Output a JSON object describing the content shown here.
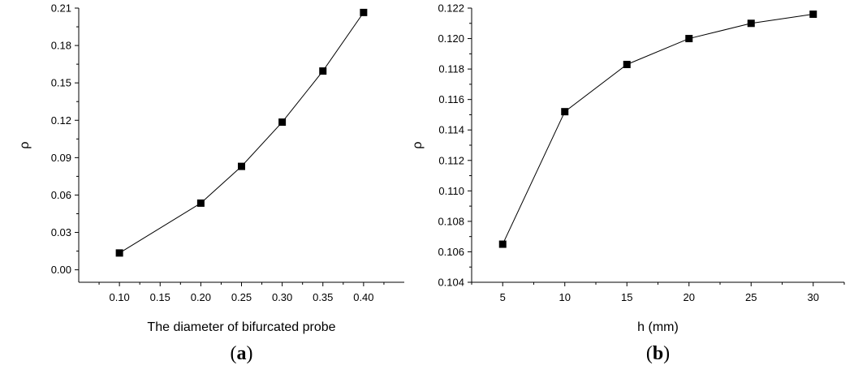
{
  "chart_data": [
    {
      "type": "line",
      "panel_label": "a",
      "xlabel": "The diameter of bifurcated probe",
      "ylabel": "ρ",
      "x": [
        0.1,
        0.2,
        0.25,
        0.3,
        0.35,
        0.4
      ],
      "y": [
        0.0135,
        0.0535,
        0.083,
        0.1185,
        0.1595,
        0.2065
      ],
      "xticks": [
        "0.10",
        "0.15",
        "0.20",
        "0.25",
        "0.30",
        "0.35",
        "0.40"
      ],
      "yticks": [
        "0.00",
        "0.03",
        "0.06",
        "0.09",
        "0.12",
        "0.15",
        "0.18",
        "0.21"
      ],
      "xlim": [
        0.05,
        0.45
      ],
      "ylim": [
        -0.01,
        0.21
      ],
      "marker": "square",
      "grid": false
    },
    {
      "type": "line",
      "panel_label": "b",
      "xlabel": "h (mm)",
      "ylabel": "ρ",
      "x": [
        5,
        10,
        15,
        20,
        25,
        30
      ],
      "y": [
        0.1065,
        0.1152,
        0.1183,
        0.12,
        0.121,
        0.1216
      ],
      "xticks": [
        "5",
        "10",
        "15",
        "20",
        "25",
        "30"
      ],
      "yticks": [
        "0.104",
        "0.106",
        "0.108",
        "0.110",
        "0.112",
        "0.114",
        "0.116",
        "0.118",
        "0.120",
        "0.122"
      ],
      "xlim": [
        2.5,
        32.5
      ],
      "ylim": [
        0.104,
        0.122
      ],
      "marker": "square",
      "grid": false
    }
  ]
}
